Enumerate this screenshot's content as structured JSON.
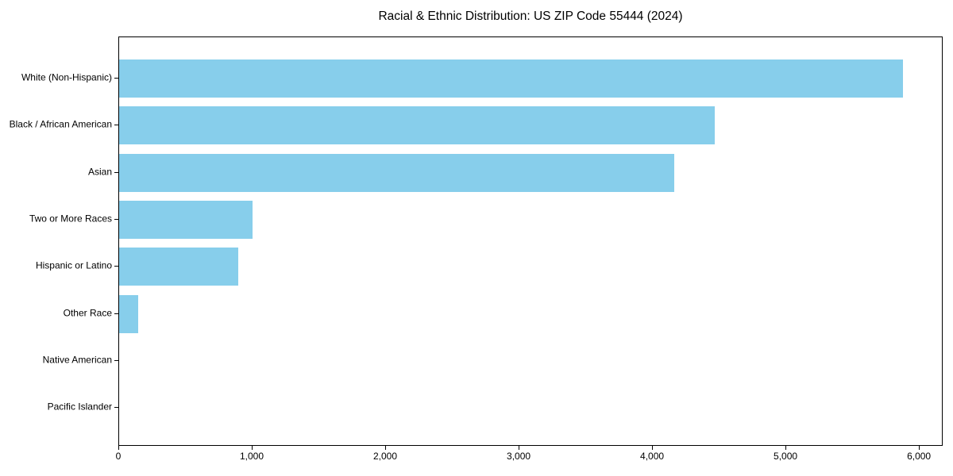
{
  "chart_data": {
    "type": "bar",
    "orientation": "horizontal",
    "title": "Racial & Ethnic Distribution: US ZIP Code 55444 (2024)",
    "categories": [
      "White (Non-Hispanic)",
      "Black / African American",
      "Asian",
      "Two or More Races",
      "Hispanic or Latino",
      "Other Race",
      "Native American",
      "Pacific Islander"
    ],
    "values": [
      5875,
      4465,
      4160,
      1000,
      890,
      140,
      0,
      0
    ],
    "xlabel": "",
    "ylabel": "",
    "xlim": [
      0,
      6178
    ],
    "xticks": [
      0,
      1000,
      2000,
      3000,
      4000,
      5000,
      6000
    ],
    "xtick_labels": [
      "0",
      "1,000",
      "2,000",
      "3,000",
      "4,000",
      "5,000",
      "6,000"
    ],
    "bar_color": "#87CEEB",
    "axis_color": "#000000",
    "grid": false,
    "legend": null
  }
}
